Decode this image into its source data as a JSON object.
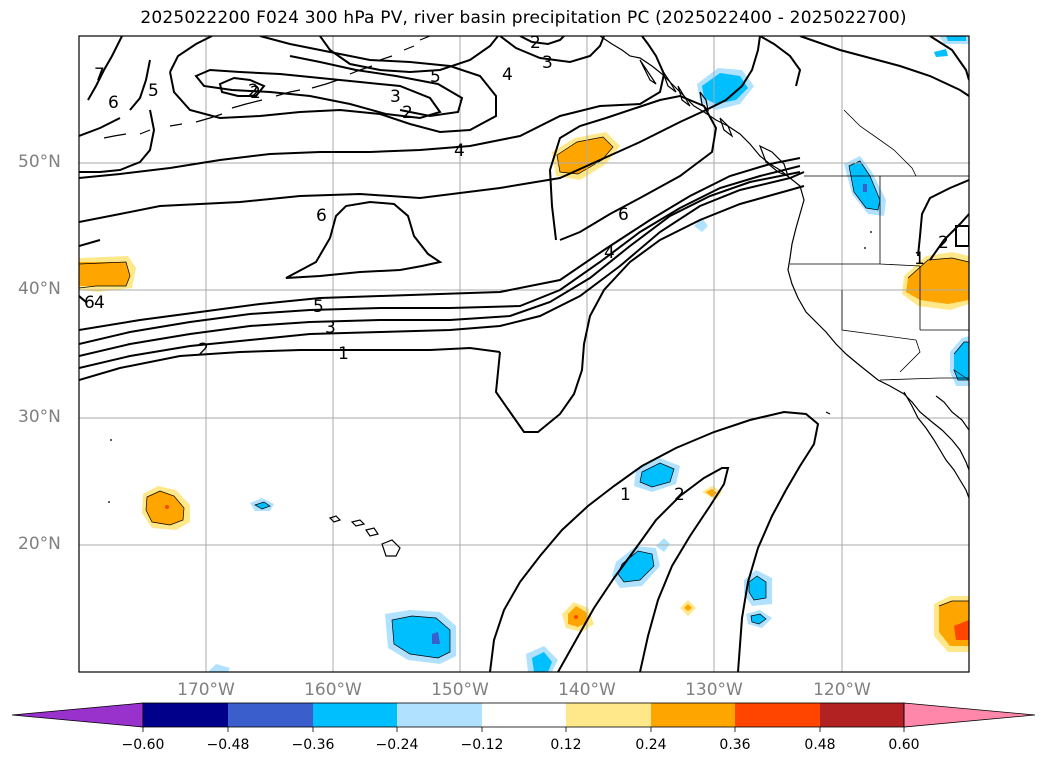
{
  "title": "2025022200 F024 300 hPa PV, river basin precipitation PC (2025022400 - 2025022700)",
  "lat_labels": [
    {
      "id": "50n",
      "text": "50°N"
    },
    {
      "id": "40n",
      "text": "40°N"
    },
    {
      "id": "30n",
      "text": "30°N"
    },
    {
      "id": "20n",
      "text": "20°N"
    }
  ],
  "lon_labels": [
    {
      "id": "170w",
      "text": "170°W"
    },
    {
      "id": "160w",
      "text": "160°W"
    },
    {
      "id": "150w",
      "text": "150°W"
    },
    {
      "id": "140w",
      "text": "140°W"
    },
    {
      "id": "130w",
      "text": "130°W"
    },
    {
      "id": "120w",
      "text": "120°W"
    }
  ],
  "map": {
    "lon_range": [
      -180,
      -110
    ],
    "lat_range": [
      10,
      60
    ],
    "gridlines": true,
    "pv_contour_levels": [
      "1",
      "2",
      "3",
      "4",
      "5",
      "6",
      "7"
    ]
  },
  "colorbar": {
    "extend": "both",
    "ticks": [
      "−0.60",
      "−0.48",
      "−0.36",
      "−0.24",
      "−0.12",
      "0.12",
      "0.24",
      "0.36",
      "0.48",
      "0.60"
    ],
    "colors": {
      "below": "#9932cc",
      "bins": [
        "#00008b",
        "#3a5fcd",
        "#00bfff",
        "#b0e2ff",
        "#ffffff",
        "#ffe88a",
        "#ffa500",
        "#ff4500",
        "#b22222"
      ],
      "above": "#ff88aa"
    }
  },
  "contour_labels": [
    "1",
    "2",
    "2",
    "3",
    "4",
    "5",
    "6",
    "6",
    "7",
    "5",
    "2",
    "3",
    "4",
    "5",
    "2",
    "3",
    "4",
    "6",
    "4",
    "1",
    "2",
    "2",
    "1",
    "6",
    "2"
  ]
}
